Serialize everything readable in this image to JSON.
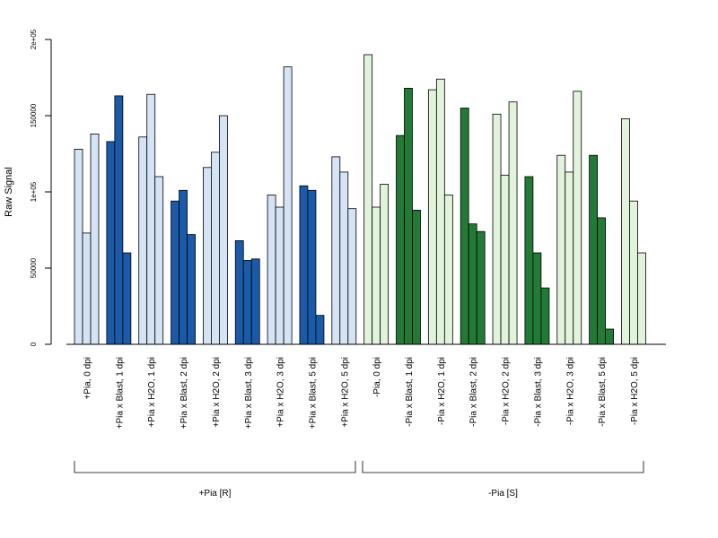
{
  "chart_data": {
    "type": "bar",
    "ylabel": "Raw Signal",
    "ylim": [
      0,
      200000
    ],
    "yticks": [
      {
        "value": 0,
        "label": "0"
      },
      {
        "value": 50000,
        "label": "50000"
      },
      {
        "value": 100000,
        "label": "1e+05"
      },
      {
        "value": 150000,
        "label": "150000"
      },
      {
        "value": 200000,
        "label": "2e+05"
      }
    ],
    "categories": [
      "+Pia, 0 dpi",
      "+Pia x Blast, 1 dpi",
      "+Pia x H2O, 1 dpi",
      "+Pia x Blast, 2 dpi",
      "+Pia x H2O, 2 dpi",
      "+Pia x Blast, 3 dpi",
      "+Pia x H2O, 3 dpi",
      "+Pia x Blast, 5 dpi",
      "+Pia x H2O, 5 dpi",
      "-Pia, 0 dpi",
      "-Pia x Blast, 1 dpi",
      "-Pia x H2O, 1 dpi",
      "-Pia x Blast, 2 dpi",
      "-Pia x H2O, 2 dpi",
      "-Pia x Blast, 3 dpi",
      "-Pia x H2O, 3 dpi",
      "-Pia x Blast, 5 dpi",
      "-Pia x H2O, 5 dpi"
    ],
    "values": [
      [
        128000,
        73000,
        138000
      ],
      [
        133000,
        163000,
        60000
      ],
      [
        136000,
        164000,
        110000
      ],
      [
        94000,
        101000,
        72000
      ],
      [
        116000,
        126000,
        150000
      ],
      [
        68000,
        55000,
        56000
      ],
      [
        98000,
        90000,
        182000
      ],
      [
        104000,
        101000,
        19000
      ],
      [
        123000,
        113000,
        89000
      ],
      [
        190000,
        90000,
        105000
      ],
      [
        137000,
        168000,
        88000
      ],
      [
        167000,
        174000,
        98000
      ],
      [
        155000,
        79000,
        74000
      ],
      [
        151000,
        111000,
        159000
      ],
      [
        110000,
        60000,
        37000
      ],
      [
        124000,
        113000,
        166000
      ],
      [
        124000,
        83000,
        10000
      ],
      [
        148000,
        94000,
        60000
      ]
    ],
    "colors": {
      "light_blue": "#d4e4f5",
      "dark_blue": "#1a5aa8",
      "light_green": "#e2f3dc",
      "dark_green": "#237a36",
      "stroke": "#000000"
    },
    "bar_colors": [
      "light_blue",
      "dark_blue",
      "light_blue",
      "dark_blue",
      "light_blue",
      "dark_blue",
      "light_blue",
      "dark_blue",
      "light_blue",
      "light_green",
      "dark_green",
      "light_green",
      "dark_green",
      "light_green",
      "dark_green",
      "light_green",
      "dark_green",
      "light_green"
    ],
    "groups": [
      {
        "label": "+Pia [R]"
      },
      {
        "label": "-Pia [S]"
      }
    ]
  }
}
